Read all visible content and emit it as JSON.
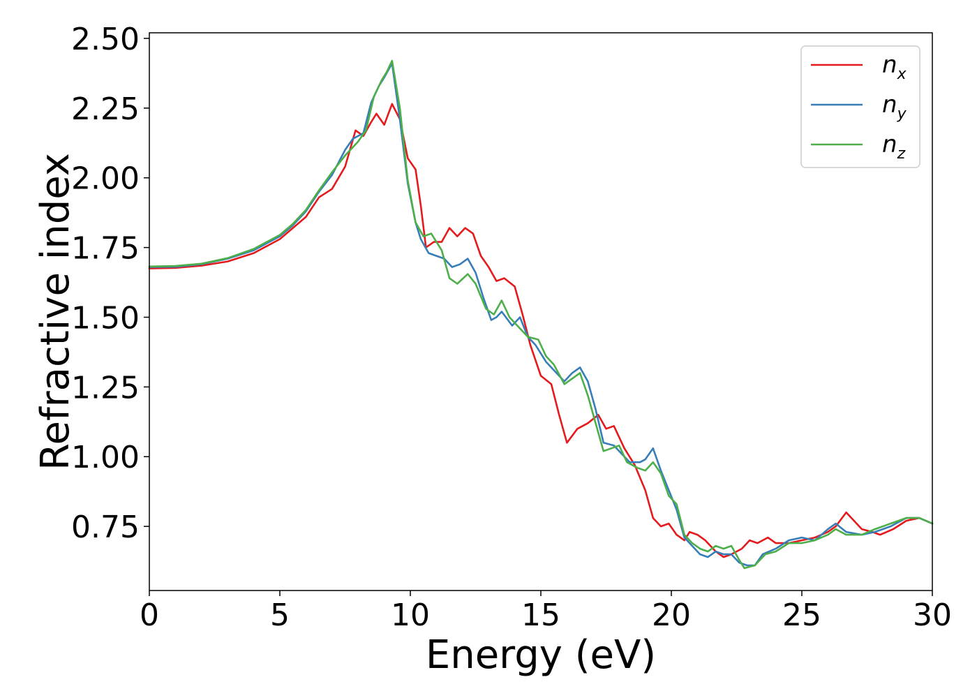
{
  "chart_data": {
    "type": "line",
    "title": "",
    "xlabel": "Energy (eV)",
    "ylabel": "Refractive index",
    "xlim": [
      0,
      30
    ],
    "ylim": [
      0.52,
      2.52
    ],
    "xticks": [
      0,
      5,
      10,
      15,
      20,
      25,
      30
    ],
    "yticks": [
      0.75,
      1.0,
      1.25,
      1.5,
      1.75,
      2.0,
      2.25,
      2.5
    ],
    "ytick_labels": [
      "0.75",
      "1.00",
      "1.25",
      "1.50",
      "1.75",
      "2.00",
      "2.25",
      "2.50"
    ],
    "grid": false,
    "legend_position": "top-right",
    "series": [
      {
        "name": "n",
        "subscript": "x",
        "color": "#e41a1c",
        "points": [
          [
            0,
            1.675
          ],
          [
            1,
            1.677
          ],
          [
            2,
            1.685
          ],
          [
            3,
            1.7
          ],
          [
            4,
            1.73
          ],
          [
            5,
            1.78
          ],
          [
            5.5,
            1.82
          ],
          [
            6,
            1.86
          ],
          [
            6.5,
            1.93
          ],
          [
            7,
            1.96
          ],
          [
            7.5,
            2.04
          ],
          [
            7.9,
            2.17
          ],
          [
            8.2,
            2.15
          ],
          [
            8.5,
            2.2
          ],
          [
            8.7,
            2.23
          ],
          [
            9.0,
            2.19
          ],
          [
            9.3,
            2.265
          ],
          [
            9.6,
            2.21
          ],
          [
            9.9,
            2.07
          ],
          [
            10.2,
            2.03
          ],
          [
            10.4,
            1.9
          ],
          [
            10.6,
            1.75
          ],
          [
            10.9,
            1.77
          ],
          [
            11.2,
            1.77
          ],
          [
            11.5,
            1.82
          ],
          [
            11.8,
            1.79
          ],
          [
            12.1,
            1.82
          ],
          [
            12.4,
            1.8
          ],
          [
            12.7,
            1.72
          ],
          [
            13.0,
            1.68
          ],
          [
            13.3,
            1.63
          ],
          [
            13.6,
            1.64
          ],
          [
            14.0,
            1.61
          ],
          [
            14.3,
            1.51
          ],
          [
            14.6,
            1.4
          ],
          [
            15.0,
            1.29
          ],
          [
            15.4,
            1.26
          ],
          [
            15.7,
            1.15
          ],
          [
            16.0,
            1.05
          ],
          [
            16.4,
            1.1
          ],
          [
            16.8,
            1.12
          ],
          [
            17.2,
            1.15
          ],
          [
            17.5,
            1.1
          ],
          [
            17.8,
            1.11
          ],
          [
            18.2,
            1.03
          ],
          [
            18.6,
            0.97
          ],
          [
            19.0,
            0.88
          ],
          [
            19.3,
            0.78
          ],
          [
            19.6,
            0.75
          ],
          [
            19.9,
            0.76
          ],
          [
            20.2,
            0.72
          ],
          [
            20.5,
            0.7
          ],
          [
            20.7,
            0.73
          ],
          [
            21.0,
            0.72
          ],
          [
            21.3,
            0.7
          ],
          [
            21.7,
            0.66
          ],
          [
            22.0,
            0.64
          ],
          [
            22.3,
            0.65
          ],
          [
            22.7,
            0.67
          ],
          [
            23.0,
            0.7
          ],
          [
            23.3,
            0.69
          ],
          [
            23.7,
            0.71
          ],
          [
            24.0,
            0.69
          ],
          [
            24.5,
            0.69
          ],
          [
            25.0,
            0.7
          ],
          [
            25.5,
            0.71
          ],
          [
            26.0,
            0.73
          ],
          [
            26.3,
            0.75
          ],
          [
            26.7,
            0.8
          ],
          [
            27.0,
            0.77
          ],
          [
            27.3,
            0.74
          ],
          [
            27.7,
            0.73
          ],
          [
            28.0,
            0.72
          ],
          [
            28.5,
            0.74
          ],
          [
            29.0,
            0.77
          ],
          [
            29.5,
            0.78
          ],
          [
            30,
            0.76
          ]
        ]
      },
      {
        "name": "n",
        "subscript": "y",
        "color": "#377eb8",
        "points": [
          [
            0,
            1.68
          ],
          [
            1,
            1.681
          ],
          [
            2,
            1.69
          ],
          [
            3,
            1.71
          ],
          [
            4,
            1.74
          ],
          [
            5,
            1.79
          ],
          [
            5.5,
            1.83
          ],
          [
            6,
            1.88
          ],
          [
            6.5,
            1.95
          ],
          [
            7,
            2.01
          ],
          [
            7.5,
            2.1
          ],
          [
            7.8,
            2.14
          ],
          [
            8.2,
            2.16
          ],
          [
            8.5,
            2.27
          ],
          [
            8.8,
            2.33
          ],
          [
            9.0,
            2.36
          ],
          [
            9.3,
            2.41
          ],
          [
            9.6,
            2.21
          ],
          [
            9.9,
            1.98
          ],
          [
            10.2,
            1.84
          ],
          [
            10.4,
            1.78
          ],
          [
            10.7,
            1.73
          ],
          [
            11.0,
            1.72
          ],
          [
            11.3,
            1.71
          ],
          [
            11.6,
            1.68
          ],
          [
            11.9,
            1.69
          ],
          [
            12.2,
            1.71
          ],
          [
            12.5,
            1.66
          ],
          [
            12.8,
            1.57
          ],
          [
            13.1,
            1.49
          ],
          [
            13.3,
            1.5
          ],
          [
            13.5,
            1.52
          ],
          [
            13.9,
            1.47
          ],
          [
            14.2,
            1.5
          ],
          [
            14.5,
            1.43
          ],
          [
            14.8,
            1.4
          ],
          [
            15.2,
            1.34
          ],
          [
            15.6,
            1.3
          ],
          [
            15.9,
            1.27
          ],
          [
            16.2,
            1.3
          ],
          [
            16.5,
            1.32
          ],
          [
            16.8,
            1.27
          ],
          [
            17.1,
            1.17
          ],
          [
            17.4,
            1.05
          ],
          [
            17.8,
            1.04
          ],
          [
            18.1,
            1.01
          ],
          [
            18.4,
            0.98
          ],
          [
            18.8,
            0.98
          ],
          [
            19.0,
            0.99
          ],
          [
            19.3,
            1.03
          ],
          [
            19.6,
            0.95
          ],
          [
            19.9,
            0.88
          ],
          [
            20.2,
            0.81
          ],
          [
            20.5,
            0.71
          ],
          [
            20.8,
            0.68
          ],
          [
            21.1,
            0.65
          ],
          [
            21.4,
            0.64
          ],
          [
            21.7,
            0.66
          ],
          [
            22.0,
            0.65
          ],
          [
            22.3,
            0.65
          ],
          [
            22.6,
            0.62
          ],
          [
            22.9,
            0.61
          ],
          [
            23.2,
            0.61
          ],
          [
            23.5,
            0.65
          ],
          [
            24.0,
            0.67
          ],
          [
            24.5,
            0.7
          ],
          [
            25.0,
            0.71
          ],
          [
            25.5,
            0.7
          ],
          [
            26.0,
            0.74
          ],
          [
            26.3,
            0.76
          ],
          [
            26.7,
            0.73
          ],
          [
            27.3,
            0.72
          ],
          [
            27.8,
            0.73
          ],
          [
            28.4,
            0.75
          ],
          [
            29.0,
            0.78
          ],
          [
            29.5,
            0.78
          ],
          [
            30,
            0.76
          ]
        ]
      },
      {
        "name": "n",
        "subscript": "z",
        "color": "#4daf4a",
        "points": [
          [
            0,
            1.682
          ],
          [
            1,
            1.684
          ],
          [
            2,
            1.692
          ],
          [
            3,
            1.712
          ],
          [
            4,
            1.745
          ],
          [
            5,
            1.795
          ],
          [
            5.5,
            1.835
          ],
          [
            6,
            1.885
          ],
          [
            6.5,
            1.955
          ],
          [
            7,
            2.02
          ],
          [
            7.5,
            2.08
          ],
          [
            8.0,
            2.13
          ],
          [
            8.3,
            2.17
          ],
          [
            8.6,
            2.29
          ],
          [
            8.9,
            2.35
          ],
          [
            9.1,
            2.38
          ],
          [
            9.3,
            2.42
          ],
          [
            9.6,
            2.25
          ],
          [
            9.9,
            1.99
          ],
          [
            10.2,
            1.84
          ],
          [
            10.5,
            1.79
          ],
          [
            10.8,
            1.8
          ],
          [
            11.2,
            1.74
          ],
          [
            11.5,
            1.64
          ],
          [
            11.8,
            1.62
          ],
          [
            12.2,
            1.655
          ],
          [
            12.5,
            1.62
          ],
          [
            12.9,
            1.53
          ],
          [
            13.2,
            1.51
          ],
          [
            13.5,
            1.56
          ],
          [
            13.8,
            1.5
          ],
          [
            14.1,
            1.47
          ],
          [
            14.5,
            1.43
          ],
          [
            14.9,
            1.42
          ],
          [
            15.2,
            1.36
          ],
          [
            15.5,
            1.33
          ],
          [
            15.9,
            1.26
          ],
          [
            16.2,
            1.28
          ],
          [
            16.5,
            1.3
          ],
          [
            16.8,
            1.22
          ],
          [
            17.1,
            1.12
          ],
          [
            17.4,
            1.02
          ],
          [
            17.7,
            1.03
          ],
          [
            18.0,
            1.04
          ],
          [
            18.3,
            0.98
          ],
          [
            18.7,
            0.96
          ],
          [
            19.0,
            0.95
          ],
          [
            19.3,
            0.98
          ],
          [
            19.6,
            0.94
          ],
          [
            19.9,
            0.86
          ],
          [
            20.2,
            0.83
          ],
          [
            20.5,
            0.72
          ],
          [
            20.8,
            0.69
          ],
          [
            21.1,
            0.67
          ],
          [
            21.4,
            0.66
          ],
          [
            21.7,
            0.68
          ],
          [
            22.0,
            0.67
          ],
          [
            22.3,
            0.68
          ],
          [
            22.6,
            0.63
          ],
          [
            22.8,
            0.6
          ],
          [
            23.2,
            0.61
          ],
          [
            23.6,
            0.65
          ],
          [
            24.0,
            0.66
          ],
          [
            24.5,
            0.69
          ],
          [
            25.0,
            0.69
          ],
          [
            25.5,
            0.7
          ],
          [
            26.0,
            0.72
          ],
          [
            26.3,
            0.74
          ],
          [
            26.7,
            0.72
          ],
          [
            27.3,
            0.72
          ],
          [
            27.8,
            0.74
          ],
          [
            28.4,
            0.76
          ],
          [
            29.0,
            0.78
          ],
          [
            29.5,
            0.78
          ],
          [
            30,
            0.76
          ]
        ]
      }
    ]
  }
}
